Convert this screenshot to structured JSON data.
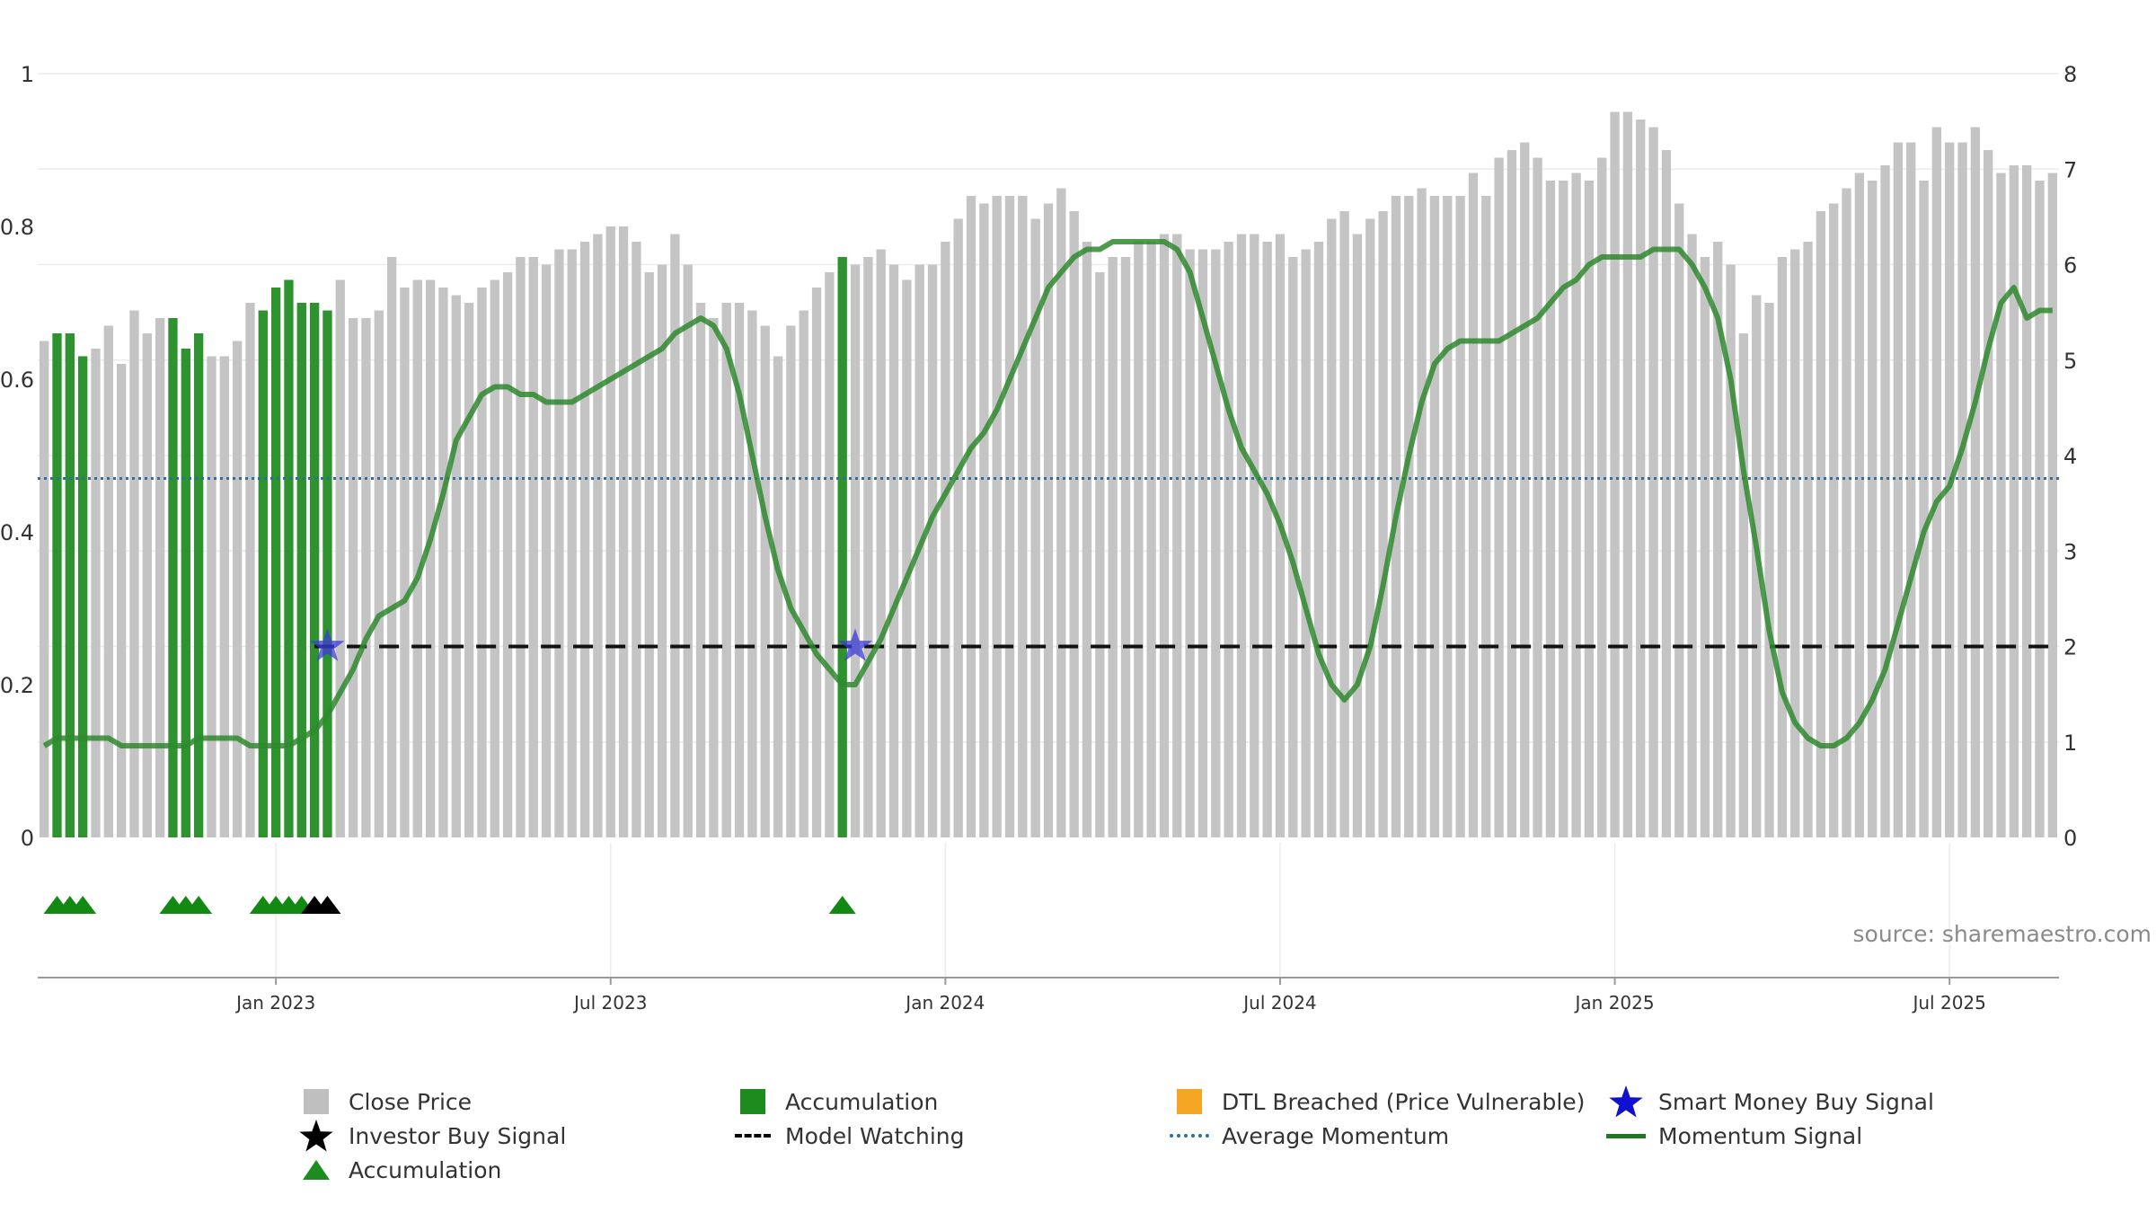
{
  "chart_data": {
    "type": "bar",
    "title": "",
    "source": "source: sharemaestro.com",
    "left_axis": {
      "min": 0,
      "max": 1,
      "ticks": [
        "0",
        "0.2",
        "0.4",
        "0.6",
        "0.8",
        "1"
      ]
    },
    "right_axis": {
      "min": 0,
      "max": 8,
      "ticks": [
        "0",
        "1",
        "2",
        "3",
        "4",
        "5",
        "6",
        "7",
        "8"
      ]
    },
    "x_axis_ticks": [
      "Jan 2023",
      "Jul 2023",
      "Jan 2024",
      "Jul 2024",
      "Jan 2025",
      "Jul 2025"
    ],
    "x_axis_tick_weeks": [
      18,
      44,
      70,
      96,
      122,
      148
    ],
    "week_count": 157,
    "close_price": [
      0.65,
      0.66,
      0.66,
      0.63,
      0.64,
      0.67,
      0.62,
      0.69,
      0.66,
      0.68,
      0.68,
      0.64,
      0.66,
      0.63,
      0.63,
      0.65,
      0.7,
      0.69,
      0.72,
      0.73,
      0.7,
      0.7,
      0.69,
      0.73,
      0.68,
      0.68,
      0.69,
      0.76,
      0.72,
      0.73,
      0.73,
      0.72,
      0.71,
      0.7,
      0.72,
      0.73,
      0.74,
      0.76,
      0.76,
      0.75,
      0.77,
      0.77,
      0.78,
      0.79,
      0.8,
      0.8,
      0.78,
      0.74,
      0.75,
      0.79,
      0.75,
      0.7,
      0.68,
      0.7,
      0.7,
      0.69,
      0.67,
      0.63,
      0.67,
      0.69,
      0.72,
      0.74,
      0.76,
      0.75,
      0.76,
      0.77,
      0.75,
      0.73,
      0.75,
      0.75,
      0.78,
      0.81,
      0.84,
      0.83,
      0.84,
      0.84,
      0.84,
      0.81,
      0.83,
      0.85,
      0.82,
      0.78,
      0.74,
      0.76,
      0.76,
      0.78,
      0.78,
      0.79,
      0.79,
      0.77,
      0.77,
      0.77,
      0.78,
      0.79,
      0.79,
      0.78,
      0.79,
      0.76,
      0.77,
      0.78,
      0.81,
      0.82,
      0.79,
      0.81,
      0.82,
      0.84,
      0.84,
      0.85,
      0.84,
      0.84,
      0.84,
      0.87,
      0.84,
      0.89,
      0.9,
      0.91,
      0.89,
      0.86,
      0.86,
      0.87,
      0.86,
      0.89,
      0.95,
      0.95,
      0.94,
      0.93,
      0.9,
      0.83,
      0.79,
      0.76,
      0.78,
      0.75,
      0.66,
      0.71,
      0.7,
      0.76,
      0.77,
      0.78,
      0.82,
      0.83,
      0.85,
      0.87,
      0.86,
      0.88,
      0.91,
      0.91,
      0.86,
      0.93,
      0.91,
      0.91,
      0.93,
      0.9,
      0.87,
      0.88,
      0.88,
      0.86,
      0.87
    ],
    "accumulation_bar_weeks": [
      1,
      2,
      3,
      10,
      11,
      12,
      17,
      18,
      19,
      20,
      21,
      22,
      62
    ],
    "momentum_signal": [
      0.12,
      0.13,
      0.13,
      0.13,
      0.13,
      0.13,
      0.12,
      0.12,
      0.12,
      0.12,
      0.12,
      0.12,
      0.13,
      0.13,
      0.13,
      0.13,
      0.12,
      0.12,
      0.12,
      0.12,
      0.13,
      0.14,
      0.16,
      0.19,
      0.22,
      0.26,
      0.29,
      0.3,
      0.31,
      0.34,
      0.39,
      0.45,
      0.52,
      0.55,
      0.58,
      0.59,
      0.59,
      0.58,
      0.58,
      0.57,
      0.57,
      0.57,
      0.58,
      0.59,
      0.6,
      0.61,
      0.62,
      0.63,
      0.64,
      0.66,
      0.67,
      0.68,
      0.67,
      0.64,
      0.58,
      0.5,
      0.42,
      0.35,
      0.3,
      0.27,
      0.24,
      0.22,
      0.2,
      0.2,
      0.23,
      0.26,
      0.3,
      0.34,
      0.38,
      0.42,
      0.45,
      0.48,
      0.51,
      0.53,
      0.56,
      0.6,
      0.64,
      0.68,
      0.72,
      0.74,
      0.76,
      0.77,
      0.77,
      0.78,
      0.78,
      0.78,
      0.78,
      0.78,
      0.77,
      0.74,
      0.68,
      0.62,
      0.56,
      0.51,
      0.48,
      0.45,
      0.41,
      0.36,
      0.3,
      0.24,
      0.2,
      0.18,
      0.2,
      0.25,
      0.33,
      0.42,
      0.5,
      0.57,
      0.62,
      0.64,
      0.65,
      0.65,
      0.65,
      0.65,
      0.66,
      0.67,
      0.68,
      0.7,
      0.72,
      0.73,
      0.75,
      0.76,
      0.76,
      0.76,
      0.76,
      0.77,
      0.77,
      0.77,
      0.75,
      0.72,
      0.68,
      0.6,
      0.48,
      0.38,
      0.27,
      0.19,
      0.15,
      0.13,
      0.12,
      0.12,
      0.13,
      0.15,
      0.18,
      0.22,
      0.28,
      0.34,
      0.4,
      0.44,
      0.46,
      0.51,
      0.57,
      0.64,
      0.7,
      0.72,
      0.68,
      0.69,
      0.69
    ],
    "average_momentum": 0.47,
    "model_watching_level": 0.25,
    "model_watching_start_week": 21,
    "smart_money_buy_signal_weeks": [
      22,
      63
    ],
    "accumulation_marker_weeks": [
      1,
      2,
      3,
      10,
      11,
      12,
      17,
      18,
      19,
      20
    ],
    "investor_buy_signal_weeks": [
      21,
      22
    ],
    "legend": [
      {
        "label": "Close Price",
        "symbol": "box",
        "color": "#bfbfbf"
      },
      {
        "label": "Accumulation",
        "symbol": "box",
        "color": "#1e8b1e"
      },
      {
        "label": "DTL Breached (Price Vulnerable)",
        "symbol": "box",
        "color": "#f5a623"
      },
      {
        "label": "Smart Money Buy Signal",
        "symbol": "star",
        "color": "#1010d0"
      },
      {
        "label": "Investor Buy Signal",
        "symbol": "star",
        "color": "#000000"
      },
      {
        "label": "Model Watching",
        "symbol": "dash",
        "color": "#000000"
      },
      {
        "label": "Average Momentum",
        "symbol": "dot",
        "color": "#2f6f9f"
      },
      {
        "label": "Momentum Signal",
        "symbol": "line",
        "color": "#1f7a1f"
      },
      {
        "label": "Accumulation",
        "symbol": "triangle",
        "color": "#1e8b1e"
      }
    ]
  }
}
